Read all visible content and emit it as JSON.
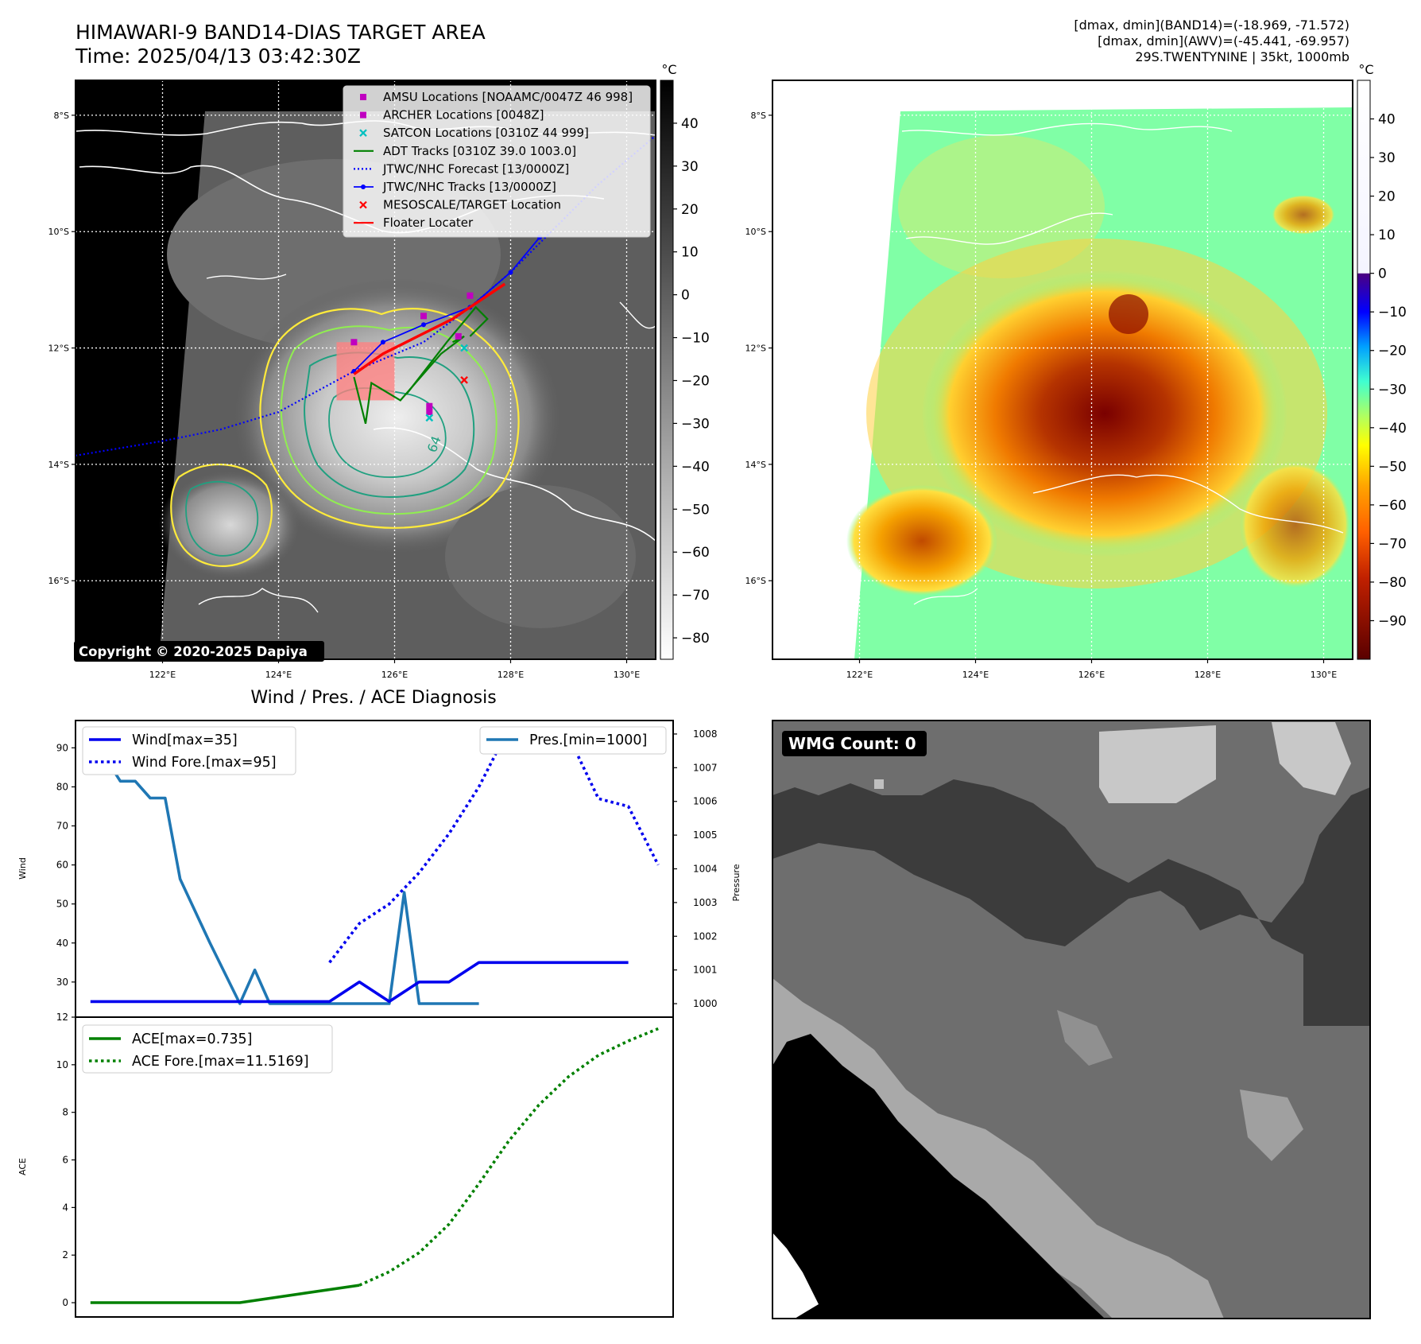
{
  "header": {
    "title_line1": "HIMAWARI-9 BAND14-DIAS TARGET AREA",
    "title_line2": "Time: 2025/04/13 03:42:30Z",
    "info_line1": "[dmax, dmin](BAND14)=(-18.969, -71.572)",
    "info_line2": "[dmax, dmin](AWV)=(-45.441, -69.957)",
    "info_line3": "29S.TWENTYNINE | 35kt, 1000mb"
  },
  "map_axes": {
    "lat_labels": [
      "8°S",
      "10°S",
      "12°S",
      "14°S",
      "16°S"
    ],
    "lon_labels": [
      "122°E",
      "124°E",
      "126°E",
      "128°E",
      "130°E"
    ],
    "lat_values": [
      -8,
      -10,
      -12,
      -14,
      -16
    ],
    "lon_values": [
      122,
      124,
      126,
      128,
      130
    ],
    "lat_range": [
      -17.35,
      -7.4
    ],
    "lon_range": [
      120.5,
      130.5
    ]
  },
  "ir_colorbar": {
    "unit": "°C",
    "ticks": [
      40,
      30,
      20,
      10,
      0,
      -10,
      -20,
      -30,
      -40,
      -50,
      -60,
      -70,
      -80
    ],
    "tick_labels": [
      "40",
      "30",
      "20",
      "10",
      "0",
      "−10",
      "−20",
      "−30",
      "−40",
      "−50",
      "−60",
      "−70",
      "−80"
    ],
    "range": [
      -85,
      50
    ]
  },
  "awv_colorbar": {
    "unit": "°C",
    "ticks": [
      40,
      30,
      20,
      10,
      0,
      -10,
      -20,
      -30,
      -40,
      -50,
      -60,
      -70,
      -80,
      -90
    ],
    "tick_labels": [
      "40",
      "30",
      "20",
      "10",
      "0",
      "−10",
      "−20",
      "−30",
      "−40",
      "−50",
      "−60",
      "−70",
      "−80",
      "−90"
    ],
    "range": [
      -100,
      50
    ]
  },
  "map_legend": [
    {
      "label": "AMSU Locations [NOAAMC/0047Z 46 998]",
      "color": "#c000c0",
      "marker": "square"
    },
    {
      "label": "ARCHER Locations [0048Z]",
      "color": "#c000c0",
      "marker": "square"
    },
    {
      "label": "SATCON Locations [0310Z 44 999]",
      "color": "#00c0c0",
      "marker": "x"
    },
    {
      "label": "ADT Tracks [0310Z 39.0 1003.0]",
      "color": "#008000",
      "marker": "line"
    },
    {
      "label": "JTWC/NHC Forecast [13/0000Z]",
      "color": "#0000ff",
      "marker": "dotted"
    },
    {
      "label": "JTWC/NHC Tracks [13/0000Z]",
      "color": "#0000ff",
      "marker": "line-dot"
    },
    {
      "label": "MESOSCALE/TARGET Location",
      "color": "#ff0000",
      "marker": "x"
    },
    {
      "label": "Floater Locater",
      "color": "#ff0000",
      "marker": "line"
    }
  ],
  "copyright": "Copyright © 2020-2025 Dapiya",
  "contour_label": "64",
  "map_tracks": {
    "jtwc_forecast": [
      [
        120.5,
        -13.85
      ],
      [
        122,
        -13.6
      ],
      [
        123,
        -13.4
      ],
      [
        124,
        -13.1
      ],
      [
        125.3,
        -12.4
      ],
      [
        126.5,
        -11.9
      ],
      [
        127.3,
        -11.3
      ],
      [
        128,
        -10.7
      ],
      [
        128.7,
        -10
      ],
      [
        129.5,
        -9.2
      ],
      [
        130.5,
        -8.35
      ]
    ],
    "jtwc_track": [
      [
        125.3,
        -12.4
      ],
      [
        125.8,
        -11.9
      ],
      [
        126.5,
        -11.6
      ],
      [
        127.3,
        -11.3
      ],
      [
        128,
        -10.7
      ],
      [
        128.5,
        -10.1
      ]
    ],
    "adt_tracks": [
      [
        [
          125.3,
          -12.5
        ],
        [
          125.5,
          -13.3
        ],
        [
          125.6,
          -12.6
        ],
        [
          126.1,
          -12.9
        ],
        [
          126.8,
          -12.1
        ],
        [
          127.2,
          -11.8
        ],
        [
          127.0,
          -11.9
        ]
      ],
      [
        [
          126.2,
          -12.8
        ],
        [
          126.9,
          -11.9
        ],
        [
          127.4,
          -11.3
        ],
        [
          127.6,
          -11.5
        ],
        [
          127.3,
          -11.8
        ]
      ]
    ],
    "floater": [
      [
        125.3,
        -12.45
      ],
      [
        125.8,
        -12.1
      ],
      [
        126.4,
        -11.8
      ],
      [
        127,
        -11.5
      ],
      [
        127.6,
        -11.1
      ],
      [
        127.9,
        -10.9
      ]
    ],
    "amsu_locations": [
      [
        126.5,
        -11.45
      ],
      [
        125.3,
        -11.9
      ],
      [
        126.6,
        -13.1
      ],
      [
        127.3,
        -11.1
      ]
    ],
    "archer_locations": [
      [
        127.1,
        -11.8
      ],
      [
        126.6,
        -13.0
      ]
    ],
    "satcon_locations": [
      [
        126.6,
        -13.2
      ],
      [
        127.2,
        -12.0
      ]
    ],
    "target_location": [
      127.2,
      -12.55
    ],
    "target_box": {
      "lon": [
        125.0,
        126.0
      ],
      "lat": [
        -12.9,
        -11.9
      ]
    }
  },
  "diag": {
    "title": "Wind / Pres. / ACE Diagnosis",
    "wind_ylabel": "Wind",
    "pressure_ylabel": "Pressure",
    "ace_ylabel": "ACE",
    "wind_legend": {
      "wind": "Wind[max=35]",
      "wind_fore": "Wind Fore.[max=95]",
      "pres": "Pres.[min=1000]"
    },
    "ace_legend": {
      "ace": "ACE[max=0.735]",
      "ace_fore": "ACE Fore.[max=11.5169]"
    },
    "colors": {
      "wind": "#0000ee",
      "pres": "#1f77b4",
      "ace": "#008000"
    }
  },
  "chart_data": [
    {
      "type": "line",
      "name": "wind",
      "ylabel": "Wind",
      "ylim": [
        21,
        97
      ],
      "yticks": [
        30,
        40,
        50,
        60,
        70,
        80,
        90
      ],
      "xlim": [
        -0.5,
        19.5
      ],
      "series": [
        {
          "name": "Wind[max=35]",
          "style": "solid",
          "x": [
            0,
            1,
            2,
            3,
            4,
            5,
            6,
            7,
            8,
            9,
            10,
            11,
            12,
            13,
            14,
            15,
            16,
            17,
            18
          ],
          "values": [
            25,
            25,
            25,
            25,
            25,
            25,
            25,
            25,
            25,
            30,
            25,
            30,
            30,
            35,
            35,
            35,
            35,
            35,
            35
          ]
        },
        {
          "name": "Wind Fore.[max=95]",
          "style": "dotted",
          "x": [
            8,
            9,
            10,
            11,
            12,
            13,
            14,
            15,
            16,
            17,
            18,
            19
          ],
          "values": [
            35,
            45,
            50,
            58,
            68,
            80,
            95,
            95,
            93,
            77,
            75,
            60
          ]
        }
      ]
    },
    {
      "type": "line",
      "name": "pressure",
      "ylabel": "Pressure",
      "ylim": [
        999.6,
        1008.4
      ],
      "yticks": [
        1000,
        1001,
        1002,
        1003,
        1004,
        1005,
        1006,
        1007,
        1008
      ],
      "xlim": [
        -0.5,
        19.5
      ],
      "series": [
        {
          "name": "Pres.[min=1000]",
          "x": [
            0,
            0.5,
            1,
            1.5,
            2,
            2.5,
            3,
            4,
            5,
            5.5,
            6,
            6.5,
            7,
            7.5,
            8,
            9,
            10,
            10.5,
            11,
            12,
            13
          ],
          "values": [
            1008,
            1007.3,
            1006.6,
            1006.6,
            1006.1,
            1006.1,
            1003.7,
            1001.8,
            1000,
            1001,
            1000,
            1000,
            1000,
            1000,
            1000,
            1000,
            1000,
            1003.3,
            1000,
            1000,
            1000
          ]
        }
      ]
    },
    {
      "type": "line",
      "name": "ace",
      "ylabel": "ACE",
      "ylim": [
        -0.6,
        12
      ],
      "yticks": [
        0,
        2,
        4,
        6,
        8,
        10,
        12
      ],
      "xlim": [
        -0.5,
        19.5
      ],
      "series": [
        {
          "name": "ACE[max=0.735]",
          "style": "solid",
          "x": [
            0,
            5,
            9
          ],
          "values": [
            0,
            0,
            0.735
          ]
        },
        {
          "name": "ACE Fore.[max=11.5169]",
          "style": "dotted",
          "x": [
            9,
            10,
            11,
            12,
            13,
            14,
            15,
            16,
            17,
            18,
            19
          ],
          "values": [
            0.735,
            1.3,
            2.1,
            3.3,
            5.0,
            6.8,
            8.3,
            9.5,
            10.4,
            11.0,
            11.5169
          ]
        }
      ]
    }
  ],
  "wmg": {
    "label": "WMG Count: 0"
  }
}
